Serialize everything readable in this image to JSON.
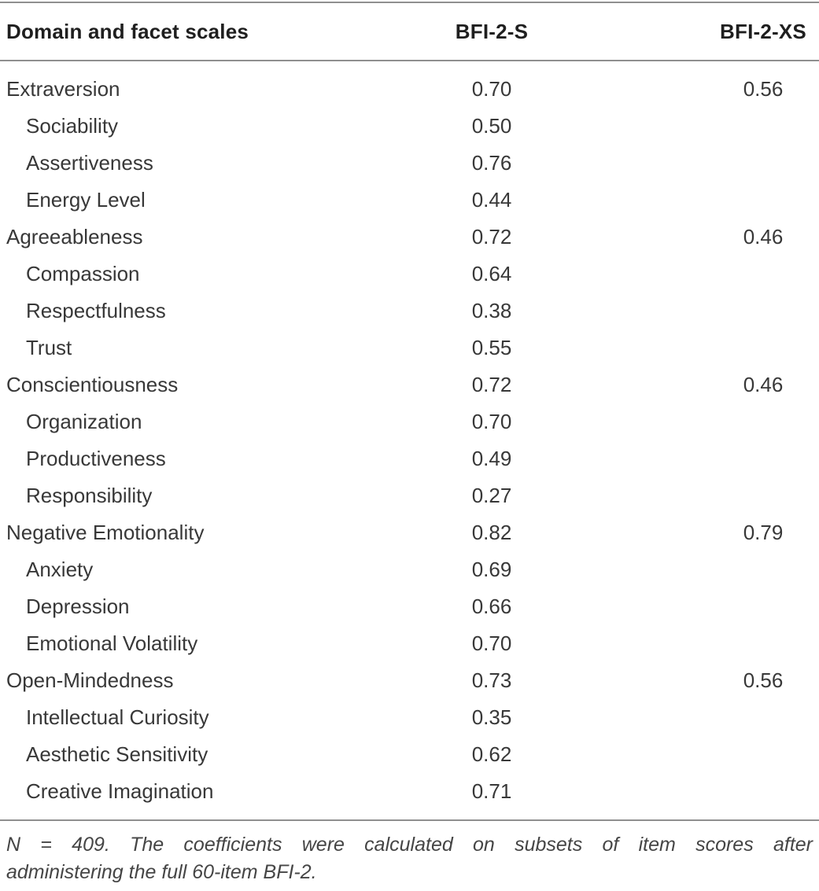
{
  "table": {
    "columns": {
      "col1": "Domain and facet scales",
      "col2": "BFI-2-S",
      "col3": "BFI-2-XS"
    },
    "rows": [
      {
        "label": "Extraversion",
        "type": "domain",
        "bfi2s": "0.70",
        "bfi2xs": "0.56"
      },
      {
        "label": "Sociability",
        "type": "facet",
        "bfi2s": "0.50",
        "bfi2xs": ""
      },
      {
        "label": "Assertiveness",
        "type": "facet",
        "bfi2s": "0.76",
        "bfi2xs": ""
      },
      {
        "label": "Energy Level",
        "type": "facet",
        "bfi2s": "0.44",
        "bfi2xs": ""
      },
      {
        "label": "Agreeableness",
        "type": "domain",
        "bfi2s": "0.72",
        "bfi2xs": "0.46"
      },
      {
        "label": "Compassion",
        "type": "facet",
        "bfi2s": "0.64",
        "bfi2xs": ""
      },
      {
        "label": "Respectfulness",
        "type": "facet",
        "bfi2s": "0.38",
        "bfi2xs": ""
      },
      {
        "label": "Trust",
        "type": "facet",
        "bfi2s": "0.55",
        "bfi2xs": ""
      },
      {
        "label": "Conscientiousness",
        "type": "domain",
        "bfi2s": "0.72",
        "bfi2xs": "0.46"
      },
      {
        "label": "Organization",
        "type": "facet",
        "bfi2s": "0.70",
        "bfi2xs": ""
      },
      {
        "label": "Productiveness",
        "type": "facet",
        "bfi2s": "0.49",
        "bfi2xs": ""
      },
      {
        "label": "Responsibility",
        "type": "facet",
        "bfi2s": "0.27",
        "bfi2xs": ""
      },
      {
        "label": "Negative Emotionality",
        "type": "domain",
        "bfi2s": "0.82",
        "bfi2xs": "0.79"
      },
      {
        "label": "Anxiety",
        "type": "facet",
        "bfi2s": "0.69",
        "bfi2xs": ""
      },
      {
        "label": "Depression",
        "type": "facet",
        "bfi2s": "0.66",
        "bfi2xs": ""
      },
      {
        "label": "Emotional Volatility",
        "type": "facet",
        "bfi2s": "0.70",
        "bfi2xs": ""
      },
      {
        "label": "Open-Mindedness",
        "type": "domain",
        "bfi2s": "0.73",
        "bfi2xs": "0.56"
      },
      {
        "label": "Intellectual Curiosity",
        "type": "facet",
        "bfi2s": "0.35",
        "bfi2xs": ""
      },
      {
        "label": "Aesthetic Sensitivity",
        "type": "facet",
        "bfi2s": "0.62",
        "bfi2xs": ""
      },
      {
        "label": "Creative Imagination",
        "type": "facet",
        "bfi2s": "0.71",
        "bfi2xs": ""
      }
    ],
    "note": {
      "line1": "N = 409. The coefficients were calculated on subsets of item scores after",
      "line2": "administering the full 60-item BFI-2."
    }
  },
  "colors": {
    "rule": "#8f8f8f",
    "header_text": "#1f1f1f",
    "body_text": "#383838",
    "note_text": "#454545",
    "background": "#ffffff"
  }
}
